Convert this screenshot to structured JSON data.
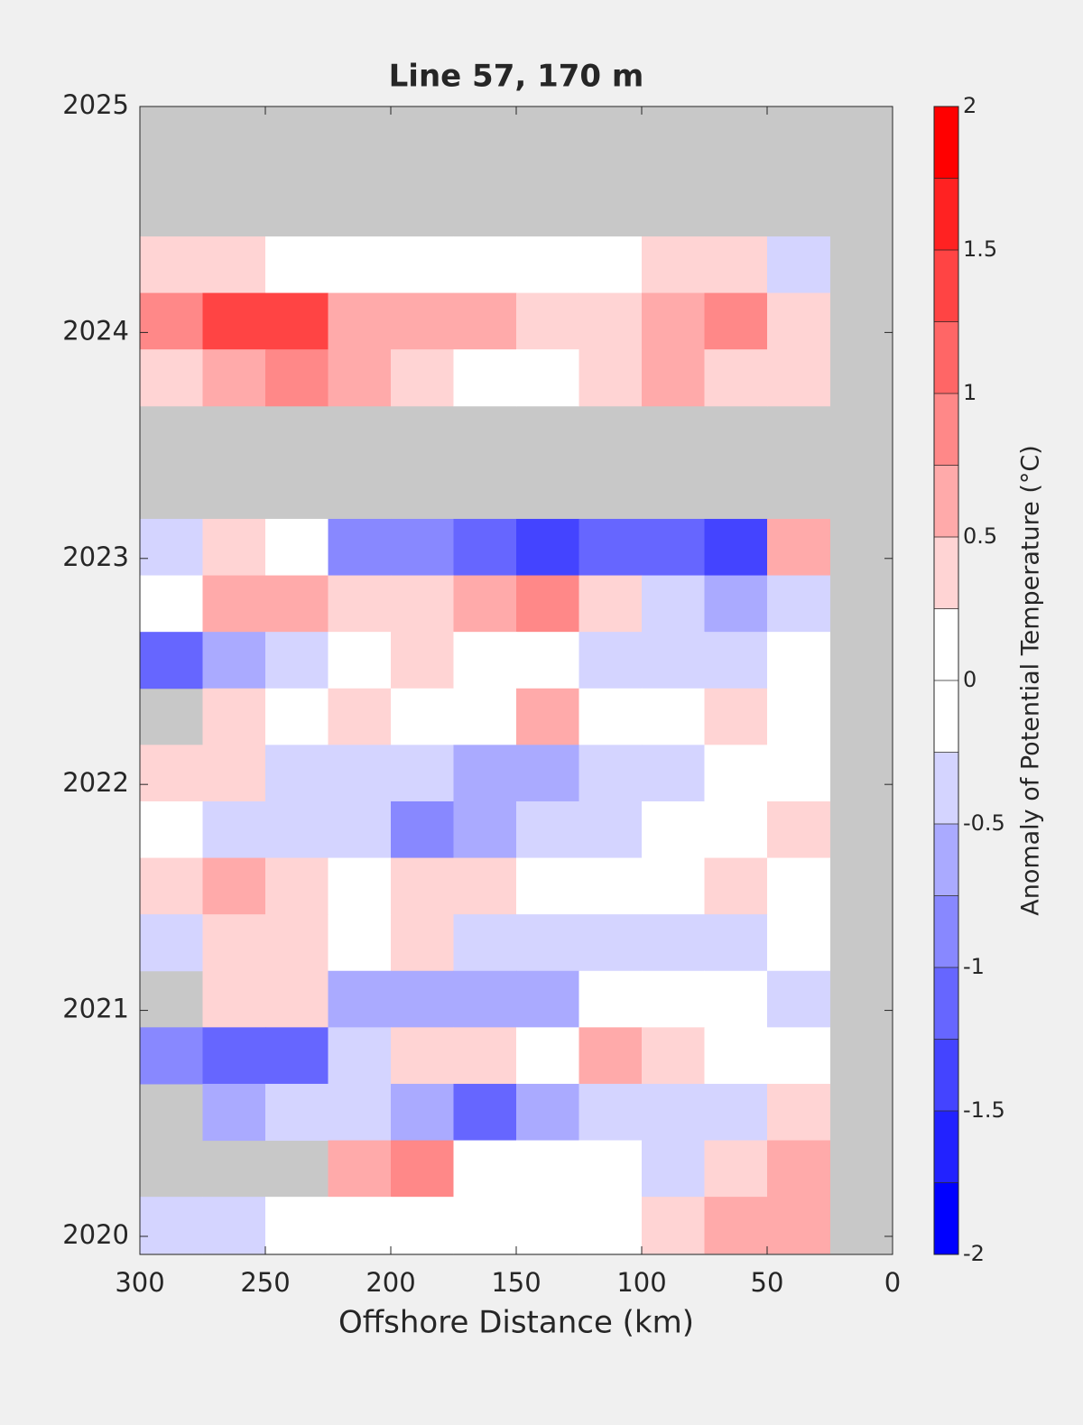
{
  "chart_data": {
    "type": "contour",
    "title": "Line 57, 170 m",
    "x_label": "Offshore Distance (km)",
    "colorbar_label": "Anomaly of Potential Temperature (°C)",
    "xlim": [
      300,
      0
    ],
    "xticks": [
      300,
      250,
      200,
      150,
      100,
      50,
      0
    ],
    "ylim": [
      2019.92,
      2025
    ],
    "yticks": [
      2020,
      2021,
      2022,
      2023,
      2024,
      2025
    ],
    "levels": [
      -2,
      -1.75,
      -1.5,
      -1.25,
      -1,
      -0.75,
      -0.5,
      -0.25,
      0,
      0.25,
      0.5,
      0.75,
      1,
      1.25,
      1.5,
      1.75,
      2
    ],
    "cticks": [
      -2,
      -1.5,
      -1,
      -0.5,
      0,
      0.5,
      1,
      1.5,
      2
    ],
    "colors": [
      "#0000ff",
      "#2222ff",
      "#4444ff",
      "#6666ff",
      "#8888ff",
      "#aaaaff",
      "#d4d4ff",
      "#ffffff",
      "#ffffff",
      "#ffd4d4",
      "#ffaaaa",
      "#ff8888",
      "#ff6666",
      "#ff4444",
      "#ff2222",
      "#ff0000"
    ],
    "missing_color": "#c8c8c8",
    "x": [
      287.5,
      262.5,
      237.5,
      212.5,
      187.5,
      162.5,
      137.5,
      112.5,
      87.5,
      62.5,
      37.5
    ],
    "y": [
      2024.3,
      2024.05,
      2023.8,
      2023.55,
      2023.3,
      2023.05,
      2022.8,
      2022.55,
      2022.3,
      2022.05,
      2021.8,
      2021.55,
      2021.3,
      2021.05,
      2020.8,
      2020.55,
      2020.3,
      2020.05
    ],
    "z": [
      [
        0.4,
        0.4,
        0.2,
        0,
        0,
        0,
        0,
        0,
        0.3,
        0.3,
        -0.3
      ],
      [
        0.8,
        1.3,
        1.4,
        0.5,
        0.6,
        0.5,
        0.4,
        0.4,
        0.6,
        0.9,
        0.4
      ],
      [
        0.3,
        0.6,
        0.8,
        0.7,
        0.4,
        0.2,
        0,
        0.3,
        0.5,
        0.4,
        0.3
      ],
      [
        null,
        null,
        null,
        null,
        null,
        null,
        null,
        null,
        null,
        null,
        null
      ],
      [
        null,
        null,
        null,
        null,
        null,
        null,
        null,
        null,
        null,
        null,
        null
      ],
      [
        -0.3,
        0.3,
        0,
        -0.8,
        -1,
        -1.2,
        -1.3,
        -1.1,
        -1.2,
        -1.4,
        0.5
      ],
      [
        0.2,
        0.5,
        0.6,
        0.4,
        0.3,
        0.5,
        0.8,
        0.3,
        -0.3,
        -0.6,
        -0.3
      ],
      [
        -1.2,
        -0.7,
        -0.3,
        0,
        0.3,
        0,
        0.2,
        -0.3,
        -0.5,
        -0.3,
        0
      ],
      [
        null,
        0.3,
        0,
        0.3,
        0,
        0,
        0.5,
        0.2,
        0,
        0.3,
        0
      ],
      [
        0.3,
        0.3,
        -0.3,
        -0.3,
        -0.5,
        -0.6,
        -0.6,
        -0.3,
        -0.3,
        0,
        0
      ],
      [
        0,
        -0.3,
        -0.3,
        -0.4,
        -0.8,
        -0.7,
        -0.5,
        -0.3,
        0,
        0,
        0.3
      ],
      [
        0.3,
        0.6,
        0.3,
        0,
        0.4,
        0.3,
        0,
        0,
        0,
        0.3,
        0
      ],
      [
        -0.3,
        0.3,
        0.3,
        0,
        0.3,
        -0.3,
        -0.4,
        -0.3,
        -0.3,
        -0.3,
        0
      ],
      [
        null,
        0.4,
        0.3,
        -0.6,
        -0.7,
        -0.7,
        -0.6,
        0,
        0,
        0,
        -0.3
      ],
      [
        -0.8,
        -1.1,
        -1.2,
        -0.5,
        0.3,
        0.3,
        0,
        0.5,
        0.3,
        0,
        0
      ],
      [
        null,
        -0.7,
        -0.4,
        -0.3,
        -0.6,
        -1.2,
        -0.6,
        -0.3,
        -0.3,
        -0.3,
        0.3
      ],
      [
        null,
        null,
        null,
        0.5,
        0.8,
        0.2,
        0,
        0,
        -0.5,
        0.3,
        0.7
      ],
      [
        -0.3,
        -0.3,
        0,
        0,
        0,
        0,
        0,
        0,
        0.3,
        0.5,
        0.6
      ]
    ]
  }
}
